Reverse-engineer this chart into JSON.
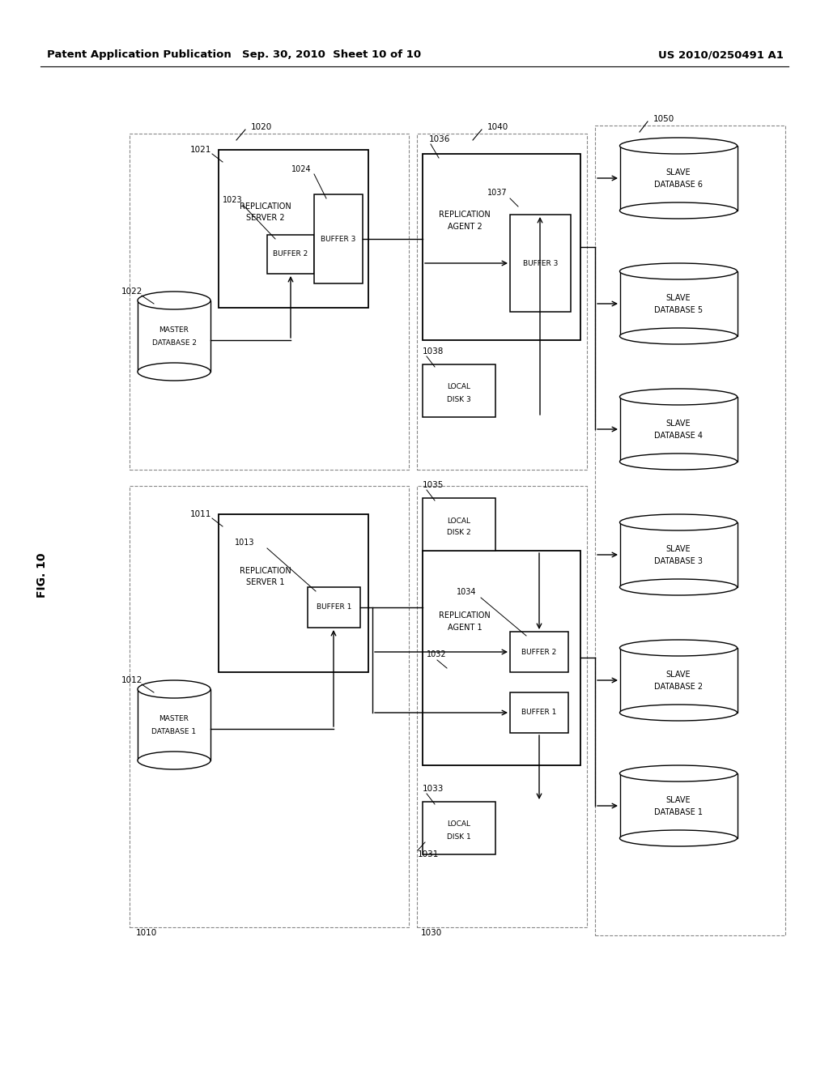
{
  "title_left": "Patent Application Publication",
  "title_mid": "Sep. 30, 2010  Sheet 10 of 10",
  "title_right": "US 2010/0250491 A1",
  "fig_label": "FIG. 10",
  "bg_color": "#ffffff",
  "lc": "#000000",
  "dc": "#888888"
}
